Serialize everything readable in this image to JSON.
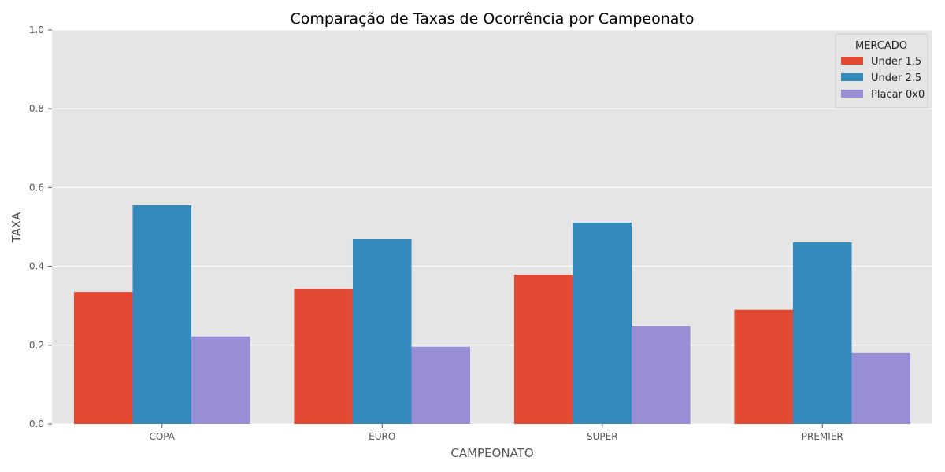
{
  "chart_data": {
    "type": "bar",
    "title": "Comparação de Taxas de Ocorrência por Campeonato",
    "xlabel": "CAMPEONATO",
    "ylabel": "TAXA",
    "categories": [
      "COPA",
      "EURO",
      "SUPER",
      "PREMIER"
    ],
    "series": [
      {
        "name": "Under 1.5",
        "color": "#E24A33",
        "values": [
          0.335,
          0.342,
          0.379,
          0.29
        ]
      },
      {
        "name": "Under 2.5",
        "color": "#348ABD",
        "values": [
          0.555,
          0.469,
          0.511,
          0.461
        ]
      },
      {
        "name": "Placar 0x0",
        "color": "#988ED5",
        "values": [
          0.222,
          0.196,
          0.248,
          0.18
        ]
      }
    ],
    "ylim": [
      0,
      1.0
    ],
    "yticks": [
      "0.0",
      "0.2",
      "0.4",
      "0.6",
      "0.8",
      "1.0"
    ],
    "grid": true,
    "legend": {
      "title": "MERCADO",
      "placement": "top-right"
    },
    "colors": {
      "plot_background": "#E5E5E5",
      "grid": "#FFFFFF",
      "text": "#555555",
      "title": "#000000"
    }
  }
}
